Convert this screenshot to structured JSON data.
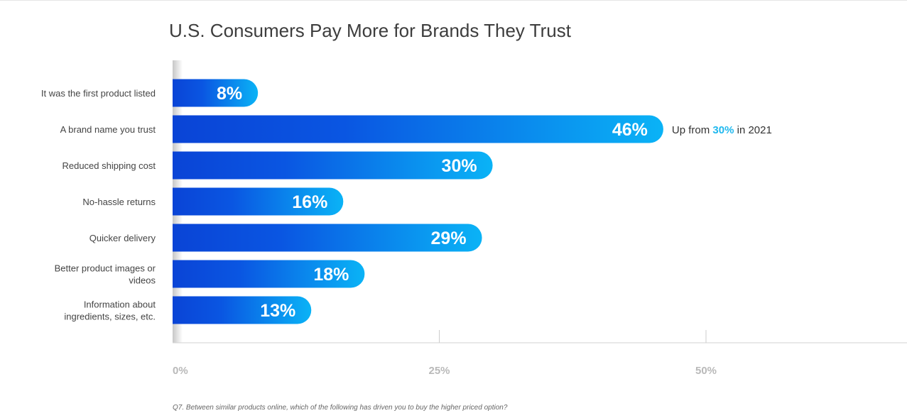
{
  "chart_data": {
    "type": "bar",
    "orientation": "horizontal",
    "title": "U.S. Consumers Pay More for Brands They Trust",
    "categories": [
      [
        "It was the first product listed"
      ],
      [
        "A brand name you trust"
      ],
      [
        "Reduced shipping cost"
      ],
      [
        "No-hassle returns"
      ],
      [
        "Quicker delivery"
      ],
      [
        "Better product images or",
        "videos"
      ],
      [
        "Information about",
        "ingredients, sizes, etc."
      ]
    ],
    "values": [
      8,
      46,
      30,
      16,
      29,
      18,
      13
    ],
    "value_labels": [
      "8%",
      "46%",
      "30%",
      "16%",
      "29%",
      "18%",
      "13%"
    ],
    "xlim": [
      0,
      50
    ],
    "ticks": [
      0,
      25,
      50
    ],
    "tick_labels": [
      "0%",
      "25%",
      "50%"
    ],
    "annotation": {
      "category_index": 1,
      "prefix": "Up from ",
      "highlight": "30%",
      "suffix": " in 2021"
    },
    "colors": {
      "bar_start": "#0a44d6",
      "bar_mid": "#0a56e2",
      "bar_end": "#0ab3f6",
      "highlight": "#1fb8ee"
    }
  },
  "footnote": "Q7. Between similar products online, which of the following has driven you to buy the higher priced option?"
}
